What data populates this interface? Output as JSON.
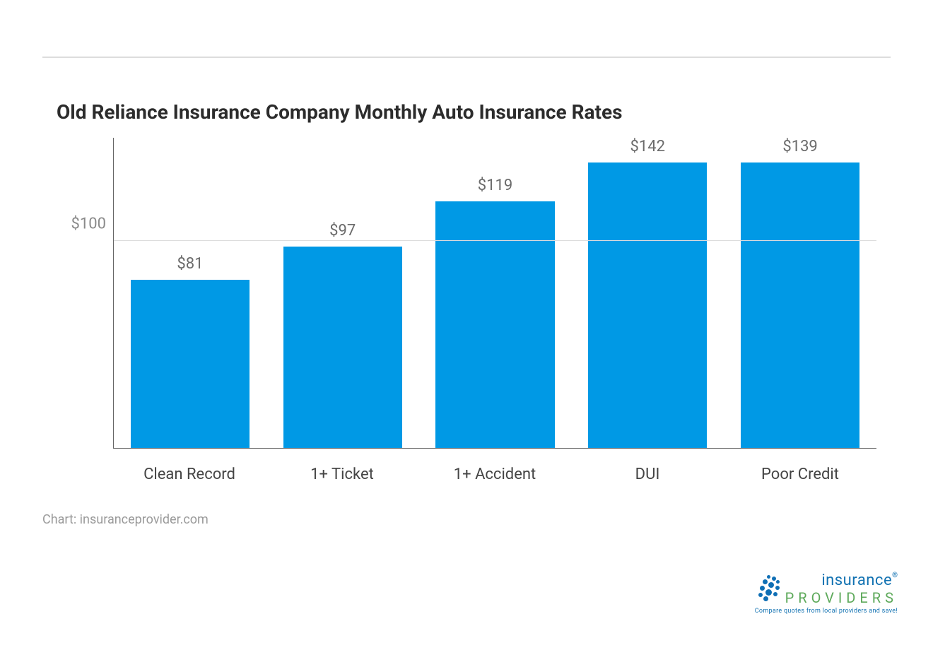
{
  "chart": {
    "type": "bar",
    "title": "Old Reliance Insurance Company Monthly Auto Insurance Rates",
    "title_fontsize": 28,
    "title_color": "#2c2c2c",
    "categories": [
      "Clean Record",
      "1+ Ticket",
      "1+ Accident",
      "DUI",
      "Poor Credit"
    ],
    "values": [
      81,
      97,
      119,
      142,
      139
    ],
    "value_labels": [
      "$81",
      "$97",
      "$119",
      "$142",
      "$139"
    ],
    "bar_color": "#0099e5",
    "bar_width_pct": 78,
    "ylim": [
      0,
      150
    ],
    "yticks": [
      100
    ],
    "ytick_labels": [
      "$100"
    ],
    "ytick_fontsize": 22,
    "ytick_color": "#8a8a8a",
    "xlabel_fontsize": 22,
    "xlabel_color": "#444444",
    "value_label_fontsize": 22,
    "value_label_color": "#6b6b6b",
    "axis_color": "#666666",
    "grid_color": "#dcdcdc",
    "background_color": "#ffffff"
  },
  "attribution": "Chart: insuranceprovider.com",
  "logo": {
    "top": "insurance",
    "bottom": "PROVIDERS",
    "tagline": "Compare quotes from local providers and save!",
    "color_primary": "#1272b2",
    "color_secondary": "#5da95a",
    "dot_color": "#0f6fb5"
  }
}
